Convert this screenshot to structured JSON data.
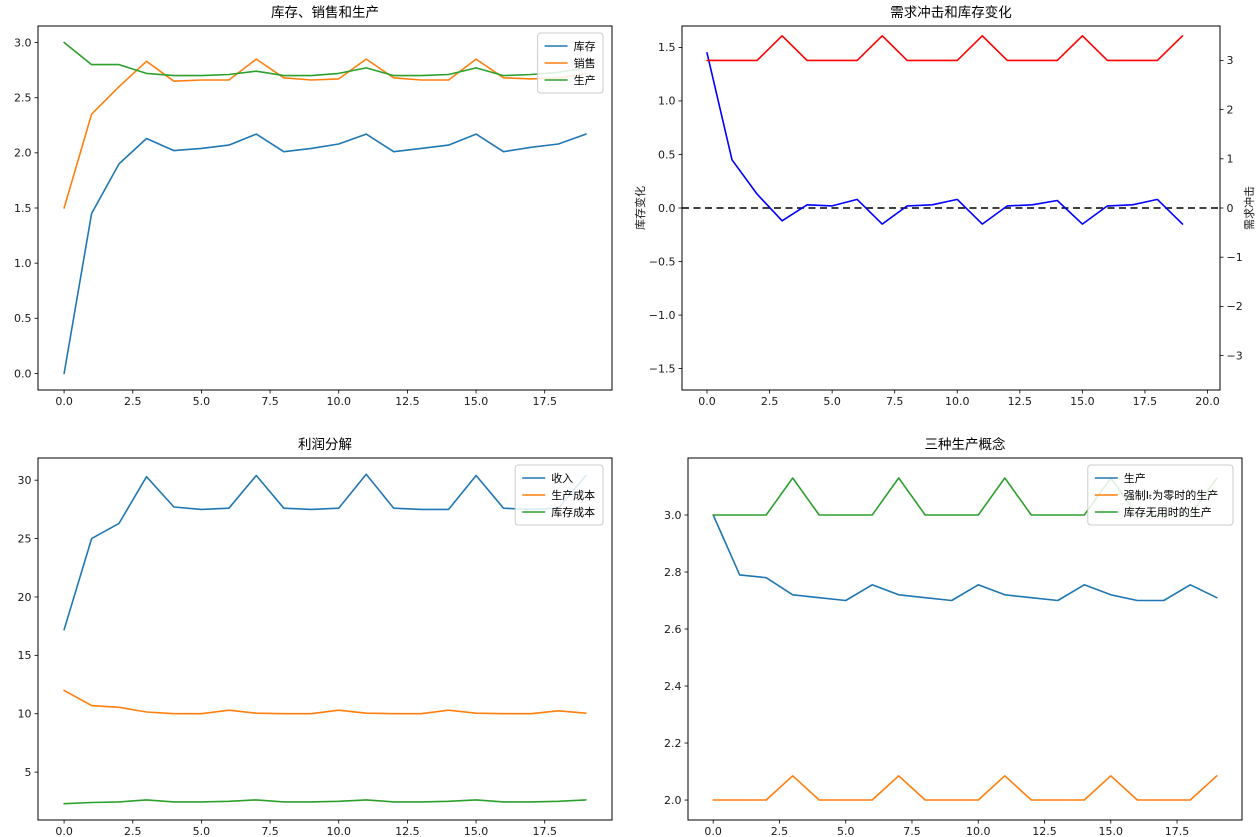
{
  "figure": {
    "background": "#ffffff",
    "panel_titles": [
      "库存、销售和生产",
      "需求冲击和库存变化",
      "利润分解",
      "三种生产概念"
    ]
  },
  "chart_data": [
    {
      "type": "line",
      "title": "库存、销售和生产",
      "x": [
        0,
        1,
        2,
        3,
        4,
        5,
        6,
        7,
        8,
        9,
        10,
        11,
        12,
        13,
        14,
        15,
        16,
        17,
        18,
        19
      ],
      "xlim": [
        -0.95,
        19.95
      ],
      "xtick_vals": [
        0,
        2.5,
        5,
        7.5,
        10,
        12.5,
        15,
        17.5
      ],
      "xtick_labels": [
        "0.0",
        "2.5",
        "5.0",
        "7.5",
        "10.0",
        "12.5",
        "15.0",
        "17.5"
      ],
      "ylim": [
        -0.15,
        3.15
      ],
      "ytick_vals": [
        0,
        0.5,
        1,
        1.5,
        2,
        2.5,
        3
      ],
      "ytick_labels": [
        "0.0",
        "0.5",
        "1.0",
        "1.5",
        "2.0",
        "2.5",
        "3.0"
      ],
      "legend": "upper-right",
      "grid": false,
      "series": [
        {
          "name": "库存",
          "color": "#1f77b4",
          "values": [
            0.0,
            1.45,
            1.9,
            2.13,
            2.02,
            2.04,
            2.07,
            2.17,
            2.01,
            2.04,
            2.08,
            2.17,
            2.01,
            2.04,
            2.07,
            2.17,
            2.01,
            2.05,
            2.08,
            2.17
          ]
        },
        {
          "name": "销售",
          "color": "#ff7f0e",
          "values": [
            1.5,
            2.35,
            2.6,
            2.83,
            2.65,
            2.66,
            2.66,
            2.85,
            2.68,
            2.66,
            2.67,
            2.85,
            2.68,
            2.66,
            2.66,
            2.85,
            2.68,
            2.67,
            2.68,
            2.72
          ]
        },
        {
          "name": "生产",
          "color": "#2ca02c",
          "values": [
            3.0,
            2.8,
            2.8,
            2.72,
            2.7,
            2.7,
            2.71,
            2.74,
            2.7,
            2.7,
            2.72,
            2.77,
            2.7,
            2.7,
            2.71,
            2.77,
            2.7,
            2.71,
            2.73,
            2.77
          ]
        }
      ]
    },
    {
      "type": "line",
      "title": "需求冲击和库存变化",
      "x": [
        0,
        1,
        2,
        3,
        4,
        5,
        6,
        7,
        8,
        9,
        10,
        11,
        12,
        13,
        14,
        15,
        16,
        17,
        18,
        19
      ],
      "xlim": [
        -1.0,
        20.5
      ],
      "xtick_vals": [
        0,
        2.5,
        5,
        7.5,
        10,
        12.5,
        15,
        17.5,
        20
      ],
      "xtick_labels": [
        "0.0",
        "2.5",
        "5.0",
        "7.5",
        "10.0",
        "12.5",
        "15.0",
        "17.5",
        "20.0"
      ],
      "ylim": [
        -1.7,
        1.7
      ],
      "ytick_vals": [
        -1.5,
        -1.0,
        -0.5,
        0,
        0.5,
        1.0,
        1.5
      ],
      "ytick_labels": [
        "−1.5",
        "−1.0",
        "−0.5",
        "0.0",
        "0.5",
        "1.0",
        "1.5"
      ],
      "ylabel": {
        "text": "库存变化",
        "color": "#0000ff"
      },
      "y2lim": [
        -3.7,
        3.7
      ],
      "y2tick_vals": [
        -3,
        -2,
        -1,
        0,
        1,
        2,
        3
      ],
      "y2tick_labels": [
        "−3",
        "−2",
        "−1",
        "0",
        "1",
        "2",
        "3"
      ],
      "y2label": {
        "text": "需求冲击",
        "color": "#ff0000"
      },
      "zero_line": {
        "y": 0,
        "color": "#000000",
        "style": "dashed"
      },
      "legend": null,
      "grid": false,
      "series": [
        {
          "name": "库存变化",
          "color": "#0000ff",
          "axis": "left",
          "values": [
            1.45,
            0.45,
            0.13,
            -0.12,
            0.03,
            0.02,
            0.08,
            -0.15,
            0.02,
            0.03,
            0.08,
            -0.15,
            0.02,
            0.03,
            0.07,
            -0.15,
            0.02,
            0.03,
            0.08,
            -0.15
          ]
        },
        {
          "name": "需求冲击",
          "color": "#ff0000",
          "axis": "right",
          "values": [
            3,
            3,
            3,
            3.5,
            3,
            3,
            3,
            3.5,
            3,
            3,
            3,
            3.5,
            3,
            3,
            3,
            3.5,
            3,
            3,
            3,
            3.5
          ]
        }
      ]
    },
    {
      "type": "line",
      "title": "利润分解",
      "x": [
        0,
        1,
        2,
        3,
        4,
        5,
        6,
        7,
        8,
        9,
        10,
        11,
        12,
        13,
        14,
        15,
        16,
        17,
        18,
        19
      ],
      "xlim": [
        -0.95,
        19.95
      ],
      "xtick_vals": [
        0,
        2.5,
        5,
        7.5,
        10,
        12.5,
        15,
        17.5
      ],
      "xtick_labels": [
        "0.0",
        "2.5",
        "5.0",
        "7.5",
        "10.0",
        "12.5",
        "15.0",
        "17.5"
      ],
      "ylim": [
        0.9,
        31.9
      ],
      "ytick_vals": [
        5,
        10,
        15,
        20,
        25,
        30
      ],
      "ytick_labels": [
        "5",
        "10",
        "15",
        "20",
        "25",
        "30"
      ],
      "legend": "upper-right",
      "grid": false,
      "series": [
        {
          "name": "收入",
          "color": "#1f77b4",
          "values": [
            17.2,
            25.0,
            26.3,
            30.3,
            27.7,
            27.5,
            27.6,
            30.4,
            27.6,
            27.5,
            27.6,
            30.5,
            27.6,
            27.5,
            27.5,
            30.4,
            27.6,
            27.5,
            27.6,
            30.4
          ]
        },
        {
          "name": "生产成本",
          "color": "#ff7f0e",
          "values": [
            12.0,
            10.7,
            10.55,
            10.15,
            10.0,
            10.0,
            10.3,
            10.05,
            10.0,
            10.0,
            10.3,
            10.05,
            10.0,
            10.0,
            10.3,
            10.05,
            10.0,
            10.0,
            10.25,
            10.05
          ]
        },
        {
          "name": "库存成本",
          "color": "#2ca02c",
          "values": [
            2.3,
            2.4,
            2.45,
            2.62,
            2.45,
            2.45,
            2.5,
            2.62,
            2.45,
            2.45,
            2.5,
            2.62,
            2.45,
            2.45,
            2.5,
            2.62,
            2.45,
            2.45,
            2.5,
            2.62
          ]
        }
      ]
    },
    {
      "type": "line",
      "title": "三种生产概念",
      "x": [
        0,
        1,
        2,
        3,
        4,
        5,
        6,
        7,
        8,
        9,
        10,
        11,
        12,
        13,
        14,
        15,
        16,
        17,
        18,
        19
      ],
      "xlim": [
        -0.95,
        19.95
      ],
      "xtick_vals": [
        0,
        2.5,
        5,
        7.5,
        10,
        12.5,
        15,
        17.5
      ],
      "xtick_labels": [
        "0.0",
        "2.5",
        "5.0",
        "7.5",
        "10.0",
        "12.5",
        "15.0",
        "17.5"
      ],
      "ylim": [
        1.93,
        3.2
      ],
      "ytick_vals": [
        2.0,
        2.2,
        2.4,
        2.6,
        2.8,
        3.0
      ],
      "ytick_labels": [
        "2.0",
        "2.2",
        "2.4",
        "2.6",
        "2.8",
        "3.0"
      ],
      "legend": "upper-right",
      "grid": false,
      "series": [
        {
          "name": "生产",
          "color": "#1f77b4",
          "values": [
            3.0,
            2.79,
            2.78,
            2.72,
            2.71,
            2.7,
            2.755,
            2.72,
            2.71,
            2.7,
            2.755,
            2.72,
            2.71,
            2.7,
            2.755,
            2.72,
            2.7,
            2.7,
            2.755,
            2.71
          ]
        },
        {
          "name": "强制Iₜ为零时的生产",
          "color": "#ff7f0e",
          "values": [
            2.0,
            2.0,
            2.0,
            2.085,
            2.0,
            2.0,
            2.0,
            2.085,
            2.0,
            2.0,
            2.0,
            2.085,
            2.0,
            2.0,
            2.0,
            2.085,
            2.0,
            2.0,
            2.0,
            2.085
          ]
        },
        {
          "name": "库存无用时的生产",
          "color": "#2ca02c",
          "values": [
            3.0,
            3.0,
            3.0,
            3.13,
            3.0,
            3.0,
            3.0,
            3.13,
            3.0,
            3.0,
            3.0,
            3.13,
            3.0,
            3.0,
            3.0,
            3.13,
            3.0,
            3.0,
            3.0,
            3.13
          ]
        }
      ]
    }
  ]
}
